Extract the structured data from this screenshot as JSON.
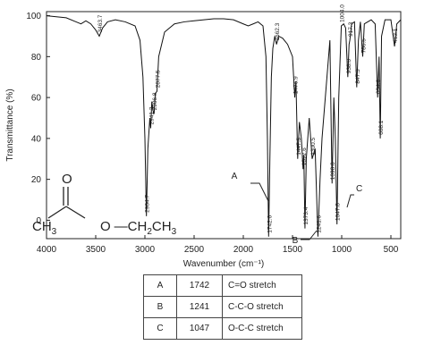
{
  "chart_data": {
    "type": "line",
    "xlabel": "Wavenumber (cm⁻¹)",
    "ylabel": "Transmittance (%)",
    "xlim": [
      4000,
      400
    ],
    "ylim": [
      -9,
      102
    ],
    "xticks": [
      4000,
      3500,
      3000,
      2500,
      2000,
      1500,
      1000,
      500
    ],
    "yticks": [
      0,
      20,
      40,
      60,
      80,
      100
    ],
    "color": "#111111",
    "x": [
      4000,
      3900,
      3800,
      3700,
      3650,
      3600,
      3550,
      3500,
      3463.7,
      3430,
      3380,
      3300,
      3200,
      3100,
      3050,
      3020,
      3000,
      2984.7,
      2970,
      2950,
      2941.2,
      2930,
      2920,
      2906.8,
      2895,
      2877.5,
      2860,
      2800,
      2700,
      2600,
      2500,
      2400,
      2300,
      2200,
      2100,
      2000,
      1950,
      1900,
      1850,
      1800,
      1770,
      1755,
      1742.6,
      1730,
      1715,
      1700,
      1680,
      1662.3,
      1640,
      1600,
      1550,
      1500,
      1476.9,
      1465,
      1447.5,
      1430,
      1410,
      1392.6,
      1385,
      1373.4,
      1360,
      1330,
      1300.5,
      1270,
      1241.6,
      1220,
      1200,
      1150,
      1120,
      1098,
      1080,
      1065,
      1047.8,
      1030,
      1004,
      980,
      960,
      938,
      925,
      917.3,
      900,
      870,
      847.3,
      830,
      810,
      786.5,
      770,
      700,
      660,
      634.6,
      620,
      608.1,
      595,
      560,
      500,
      463.1,
      440,
      400
    ],
    "values": [
      100,
      99.5,
      99,
      97,
      96,
      97.5,
      96,
      93,
      90,
      94,
      97,
      98,
      97,
      95,
      88,
      70,
      40,
      2,
      35,
      50,
      45,
      58,
      54,
      52,
      62,
      63,
      80,
      92,
      96,
      97,
      97.5,
      98,
      98.5,
      98.5,
      98,
      96,
      95,
      96,
      97,
      95,
      80,
      40,
      -8,
      30,
      70,
      84,
      90,
      86,
      90,
      89,
      86,
      80,
      60,
      68,
      30,
      48,
      40,
      25,
      32,
      -4,
      30,
      50,
      30,
      35,
      -8,
      20,
      40,
      70,
      88,
      18,
      60,
      40,
      -2,
      60,
      95,
      96,
      94,
      70,
      86,
      88,
      96,
      97,
      65,
      88,
      97,
      80,
      96,
      98,
      96,
      60,
      80,
      40,
      90,
      98,
      98,
      85,
      96,
      98
    ],
    "peaks": [
      3463.7,
      2984.7,
      2941.2,
      2906.8,
      2877.5,
      1742.6,
      1662.3,
      1476.9,
      1447.5,
      1392.6,
      1373.4,
      1300.5,
      1241.6,
      {
        "value": 1098,
        "label": "1098.0"
      },
      1047.8,
      {
        "value": 1004,
        "label": "1004.0"
      },
      {
        "value": 938,
        "label": "938.0"
      },
      917.3,
      847.3,
      786.5,
      634.6,
      608.1,
      463.1
    ],
    "annotations": [
      "A",
      "B",
      "C"
    ]
  },
  "structure": {
    "top": "O",
    "left": [
      "CH",
      "3"
    ],
    "right": [
      "O",
      "CH",
      "2",
      "CH",
      "3"
    ]
  },
  "table": {
    "rows": [
      [
        "A",
        "1742",
        "C=O stretch"
      ],
      [
        "B",
        "1241",
        "C-C-O stretch"
      ],
      [
        "C",
        "1047",
        "O-C-C stretch"
      ]
    ]
  }
}
